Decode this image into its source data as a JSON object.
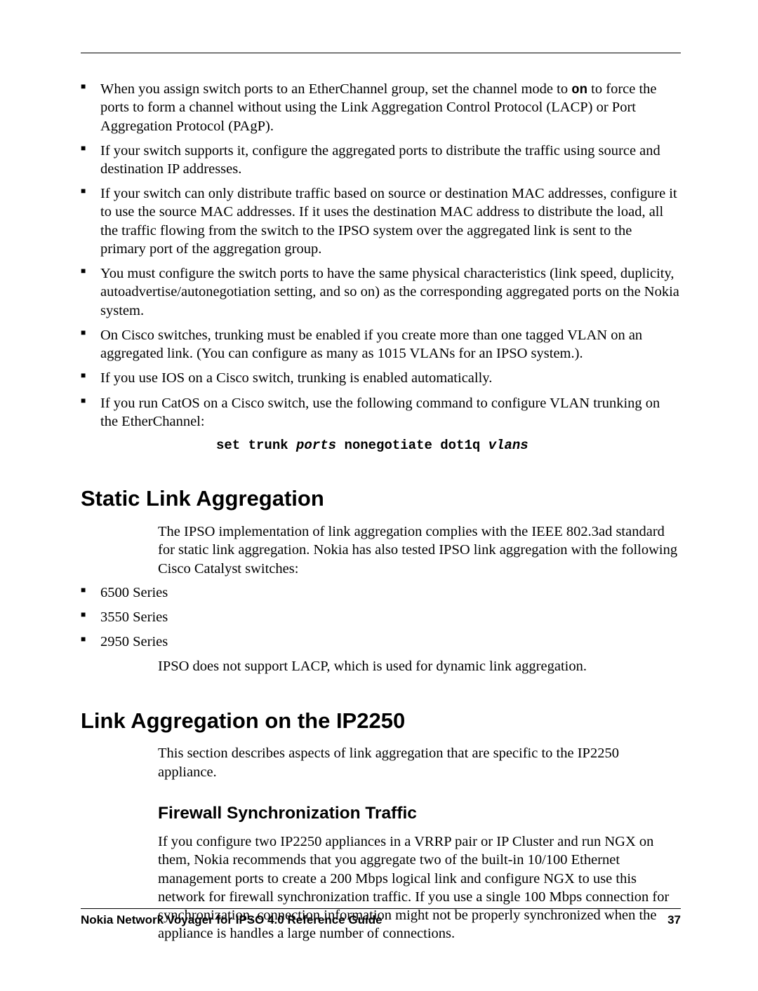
{
  "bullets_l2a": [
    {
      "pre": "When you assign switch ports to an EtherChannel group, set the channel mode to ",
      "bold": "on",
      "post": " to force the ports to form a channel without using the Link Aggregation Control Protocol (LACP) or Port Aggregation Protocol (PAgP)."
    },
    {
      "text": "If your switch supports it, configure the aggregated ports to distribute the traffic using source and destination IP addresses."
    },
    {
      "text": "If your switch can only distribute traffic based on source or destination MAC addresses, configure it to use the source MAC addresses. If it uses the destination MAC address to distribute the load, all the traffic flowing from the switch to the IPSO system over the aggregated link is sent to the primary port of the aggregation group."
    }
  ],
  "bullets_l1": [
    {
      "text": "You must configure the switch ports to have the same physical characteristics (link speed, duplicity, autoadvertise/autonegotiation setting, and so on) as the corresponding aggregated ports on the Nokia system."
    },
    {
      "text": "On Cisco switches, trunking must be enabled if you create more than one tagged VLAN on an aggregated link. (You can configure as many as 1015 VLANs for an IPSO system.)."
    }
  ],
  "bullets_l2b": [
    {
      "text": "If you use IOS on a Cisco switch, trunking is enabled automatically."
    },
    {
      "text": "If you run CatOS on a Cisco switch, use the following command to configure VLAN trunking on the EtherChannel:"
    }
  ],
  "code": {
    "p1": "set trunk ",
    "p2": "ports",
    "p3": " nonegotiate dot1q ",
    "p4": "vlans"
  },
  "section1": {
    "heading": "Static Link Aggregation",
    "para": "The IPSO implementation of link aggregation complies with the IEEE 802.3ad standard for static link aggregation. Nokia has also tested IPSO link aggregation with the following Cisco Catalyst switches:",
    "items": [
      "6500 Series",
      "3550 Series",
      "2950 Series"
    ],
    "para2": "IPSO does not support LACP, which is used for dynamic link aggregation."
  },
  "section2": {
    "heading": "Link Aggregation on the IP2250",
    "para": "This section describes aspects of link aggregation that are specific to the IP2250 appliance.",
    "sub_heading": "Firewall Synchronization Traffic",
    "sub_para": "If you configure two IP2250 appliances in a VRRP pair or IP Cluster and run NGX on them, Nokia recommends that you aggregate two of the built-in 10/100 Ethernet management ports to create a 200 Mbps logical link and configure NGX to use this network for firewall synchronization traffic. If you use a single 100 Mbps connection for synchronization, connection information might not be properly synchronized when the appliance is handles a large number of connections."
  },
  "footer": {
    "title": "Nokia Network Voyager for IPSO 4.0 Reference Guide",
    "page": "37"
  }
}
